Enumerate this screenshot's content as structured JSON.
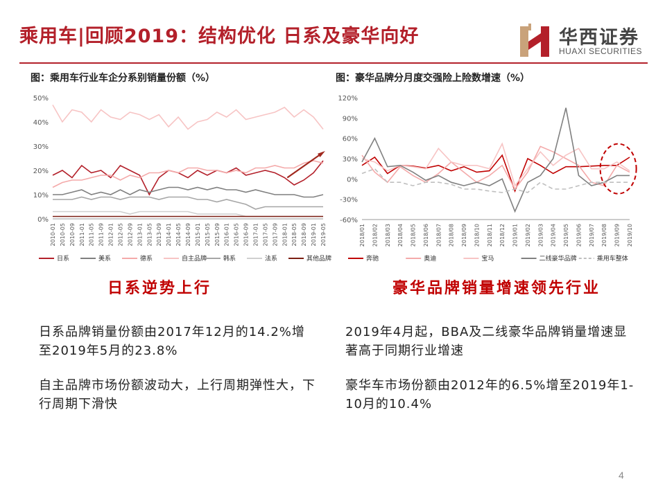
{
  "page": {
    "title": "乘用车|回顾2019：结构优化 日系及豪华向好",
    "page_number": "4"
  },
  "logo": {
    "cn": "华西证券",
    "en": "HUAXI SECURITIES",
    "brand_color": "#b3202a"
  },
  "left": {
    "chart_title": "图：乘用车行业车企分系别销量份额（%）",
    "headline": "日系逆势上行",
    "para1": "日系品牌销量份额由2017年12月的14.2%增至2019年5月的23.8%",
    "para2": "自主品牌市场份额波动大，上行周期弹性大，下行周期下滑快"
  },
  "right": {
    "chart_title": "图：豪华品牌分月度交强险上险数增速（%）",
    "headline": "豪华品牌销量增速领先行业",
    "para1": "2019年4月起，BBA及二线豪华品牌销量增速显著高于同期行业增速",
    "para2": "豪华车市场份额由2012年的6.5%增至2019年1-10月的10.4%"
  },
  "chart_data": [
    {
      "type": "line",
      "title": "图：乘用车行业车企分系别销量份额（%）",
      "ylim": [
        0,
        50
      ],
      "yticks": [
        "0%",
        "10%",
        "20%",
        "30%",
        "40%",
        "50%"
      ],
      "x_labels": [
        "2010-01",
        "2010-05",
        "2010-09",
        "2011-01",
        "2011-05",
        "2011-09",
        "2012-01",
        "2012-05",
        "2012-09",
        "2013-01",
        "2013-05",
        "2013-09",
        "2014-01",
        "2014-05",
        "2014-09",
        "2015-01",
        "2015-05",
        "2015-09",
        "2016-01",
        "2016-05",
        "2016-09",
        "2017-01",
        "2017-05",
        "2017-09",
        "2018-01",
        "2018-05",
        "2018-09",
        "2019-01",
        "2019-05"
      ],
      "legend_position": "bottom",
      "series": [
        {
          "name": "日系",
          "color": "#b3202a",
          "dash": "",
          "values": [
            18,
            20,
            17,
            22,
            19,
            20,
            17,
            22,
            20,
            18,
            10,
            17,
            20,
            19,
            17,
            20,
            18,
            20,
            19,
            21,
            18,
            19,
            20,
            19,
            17,
            14,
            16,
            19,
            24
          ]
        },
        {
          "name": "美系",
          "color": "#7f7f7f",
          "dash": "",
          "values": [
            10,
            10,
            11,
            12,
            10,
            11,
            10,
            12,
            10,
            12,
            11,
            12,
            13,
            13,
            12,
            13,
            12,
            13,
            12,
            12,
            11,
            12,
            11,
            10,
            10,
            10,
            9,
            9,
            10
          ]
        },
        {
          "name": "德系",
          "color": "#f4a9a9",
          "dash": "",
          "values": [
            13,
            15,
            16,
            16,
            17,
            18,
            18,
            16,
            18,
            17,
            19,
            19,
            20,
            19,
            21,
            21,
            20,
            20,
            19,
            20,
            19,
            21,
            21,
            22,
            21,
            21,
            23,
            24,
            23
          ]
        },
        {
          "name": "自主品牌",
          "color": "#f7c4c4",
          "dash": "",
          "values": [
            47,
            40,
            45,
            44,
            40,
            45,
            42,
            41,
            44,
            43,
            41,
            43,
            38,
            42,
            37,
            40,
            41,
            44,
            42,
            45,
            41,
            42,
            43,
            44,
            46,
            42,
            45,
            42,
            37
          ]
        },
        {
          "name": "韩系",
          "color": "#a6a6a6",
          "dash": "",
          "values": [
            8,
            8,
            8,
            9,
            8,
            9,
            9,
            8,
            9,
            9,
            9,
            8,
            9,
            9,
            9,
            8,
            8,
            7,
            8,
            7,
            6,
            4,
            5,
            5,
            5,
            5,
            5,
            5,
            5
          ]
        },
        {
          "name": "法系",
          "color": "#cfcfcf",
          "dash": "",
          "values": [
            3,
            3,
            3,
            3,
            3,
            3,
            3,
            3,
            2,
            3,
            3,
            3,
            3,
            3,
            3,
            2,
            2,
            2,
            2,
            2,
            1,
            1,
            1,
            1,
            1,
            1,
            1,
            1,
            1
          ]
        },
        {
          "name": "其他品牌",
          "color": "#7b1e12",
          "dash": "",
          "values": [
            1,
            1,
            1,
            1,
            1,
            1,
            1,
            1,
            1,
            1,
            1,
            1,
            1,
            1,
            1,
            1,
            1,
            1,
            1,
            1,
            1,
            1,
            1,
            1,
            1,
            1,
            1,
            1,
            1
          ]
        }
      ]
    },
    {
      "type": "line",
      "title": "图：豪华品牌分月度交强险上险数增速（%）",
      "ylim": [
        -60,
        120
      ],
      "yticks": [
        "-60%",
        "-30%",
        "0%",
        "30%",
        "60%",
        "90%",
        "120%"
      ],
      "x_labels": [
        "2018/01",
        "2018/02",
        "2018/03",
        "2018/04",
        "2018/05",
        "2018/06",
        "2018/07",
        "2018/08",
        "2018/09",
        "2018/10",
        "2018/11",
        "2018/12",
        "2019/01",
        "2019/02",
        "2019/03",
        "2019/04",
        "2019/05",
        "2019/06",
        "2019/07",
        "2019/08",
        "2019/09",
        "2019/10"
      ],
      "legend_position": "bottom",
      "series": [
        {
          "name": "奔驰",
          "color": "#c00000",
          "dash": "",
          "values": [
            20,
            32,
            8,
            20,
            19,
            16,
            20,
            12,
            18,
            10,
            12,
            35,
            -18,
            30,
            20,
            8,
            18,
            18,
            19,
            20,
            20,
            32
          ]
        },
        {
          "name": "奥迪",
          "color": "#f4a9a9",
          "dash": "",
          "values": [
            35,
            10,
            -5,
            18,
            5,
            -5,
            8,
            25,
            10,
            -5,
            5,
            20,
            -15,
            10,
            48,
            40,
            30,
            20,
            -5,
            -10,
            20,
            10
          ]
        },
        {
          "name": "宝马",
          "color": "#f7c4c4",
          "dash": "",
          "values": [
            30,
            25,
            12,
            20,
            18,
            15,
            45,
            25,
            20,
            20,
            15,
            52,
            -10,
            15,
            40,
            20,
            35,
            45,
            15,
            15,
            25,
            12
          ]
        },
        {
          "name": "二线豪华品牌",
          "color": "#808080",
          "dash": "",
          "values": [
            25,
            60,
            18,
            20,
            10,
            -2,
            5,
            -5,
            -10,
            -5,
            -10,
            0,
            -48,
            -5,
            5,
            30,
            105,
            5,
            -10,
            -5,
            5,
            5
          ]
        },
        {
          "name": "乘用车整体",
          "color": "#bfbfbf",
          "dash": "6,4",
          "values": [
            8,
            15,
            -5,
            -5,
            -10,
            -5,
            -5,
            -8,
            -15,
            -15,
            -18,
            -20,
            -15,
            -20,
            -5,
            -15,
            -15,
            -10,
            -5,
            -5,
            -5,
            -5
          ]
        }
      ]
    }
  ]
}
